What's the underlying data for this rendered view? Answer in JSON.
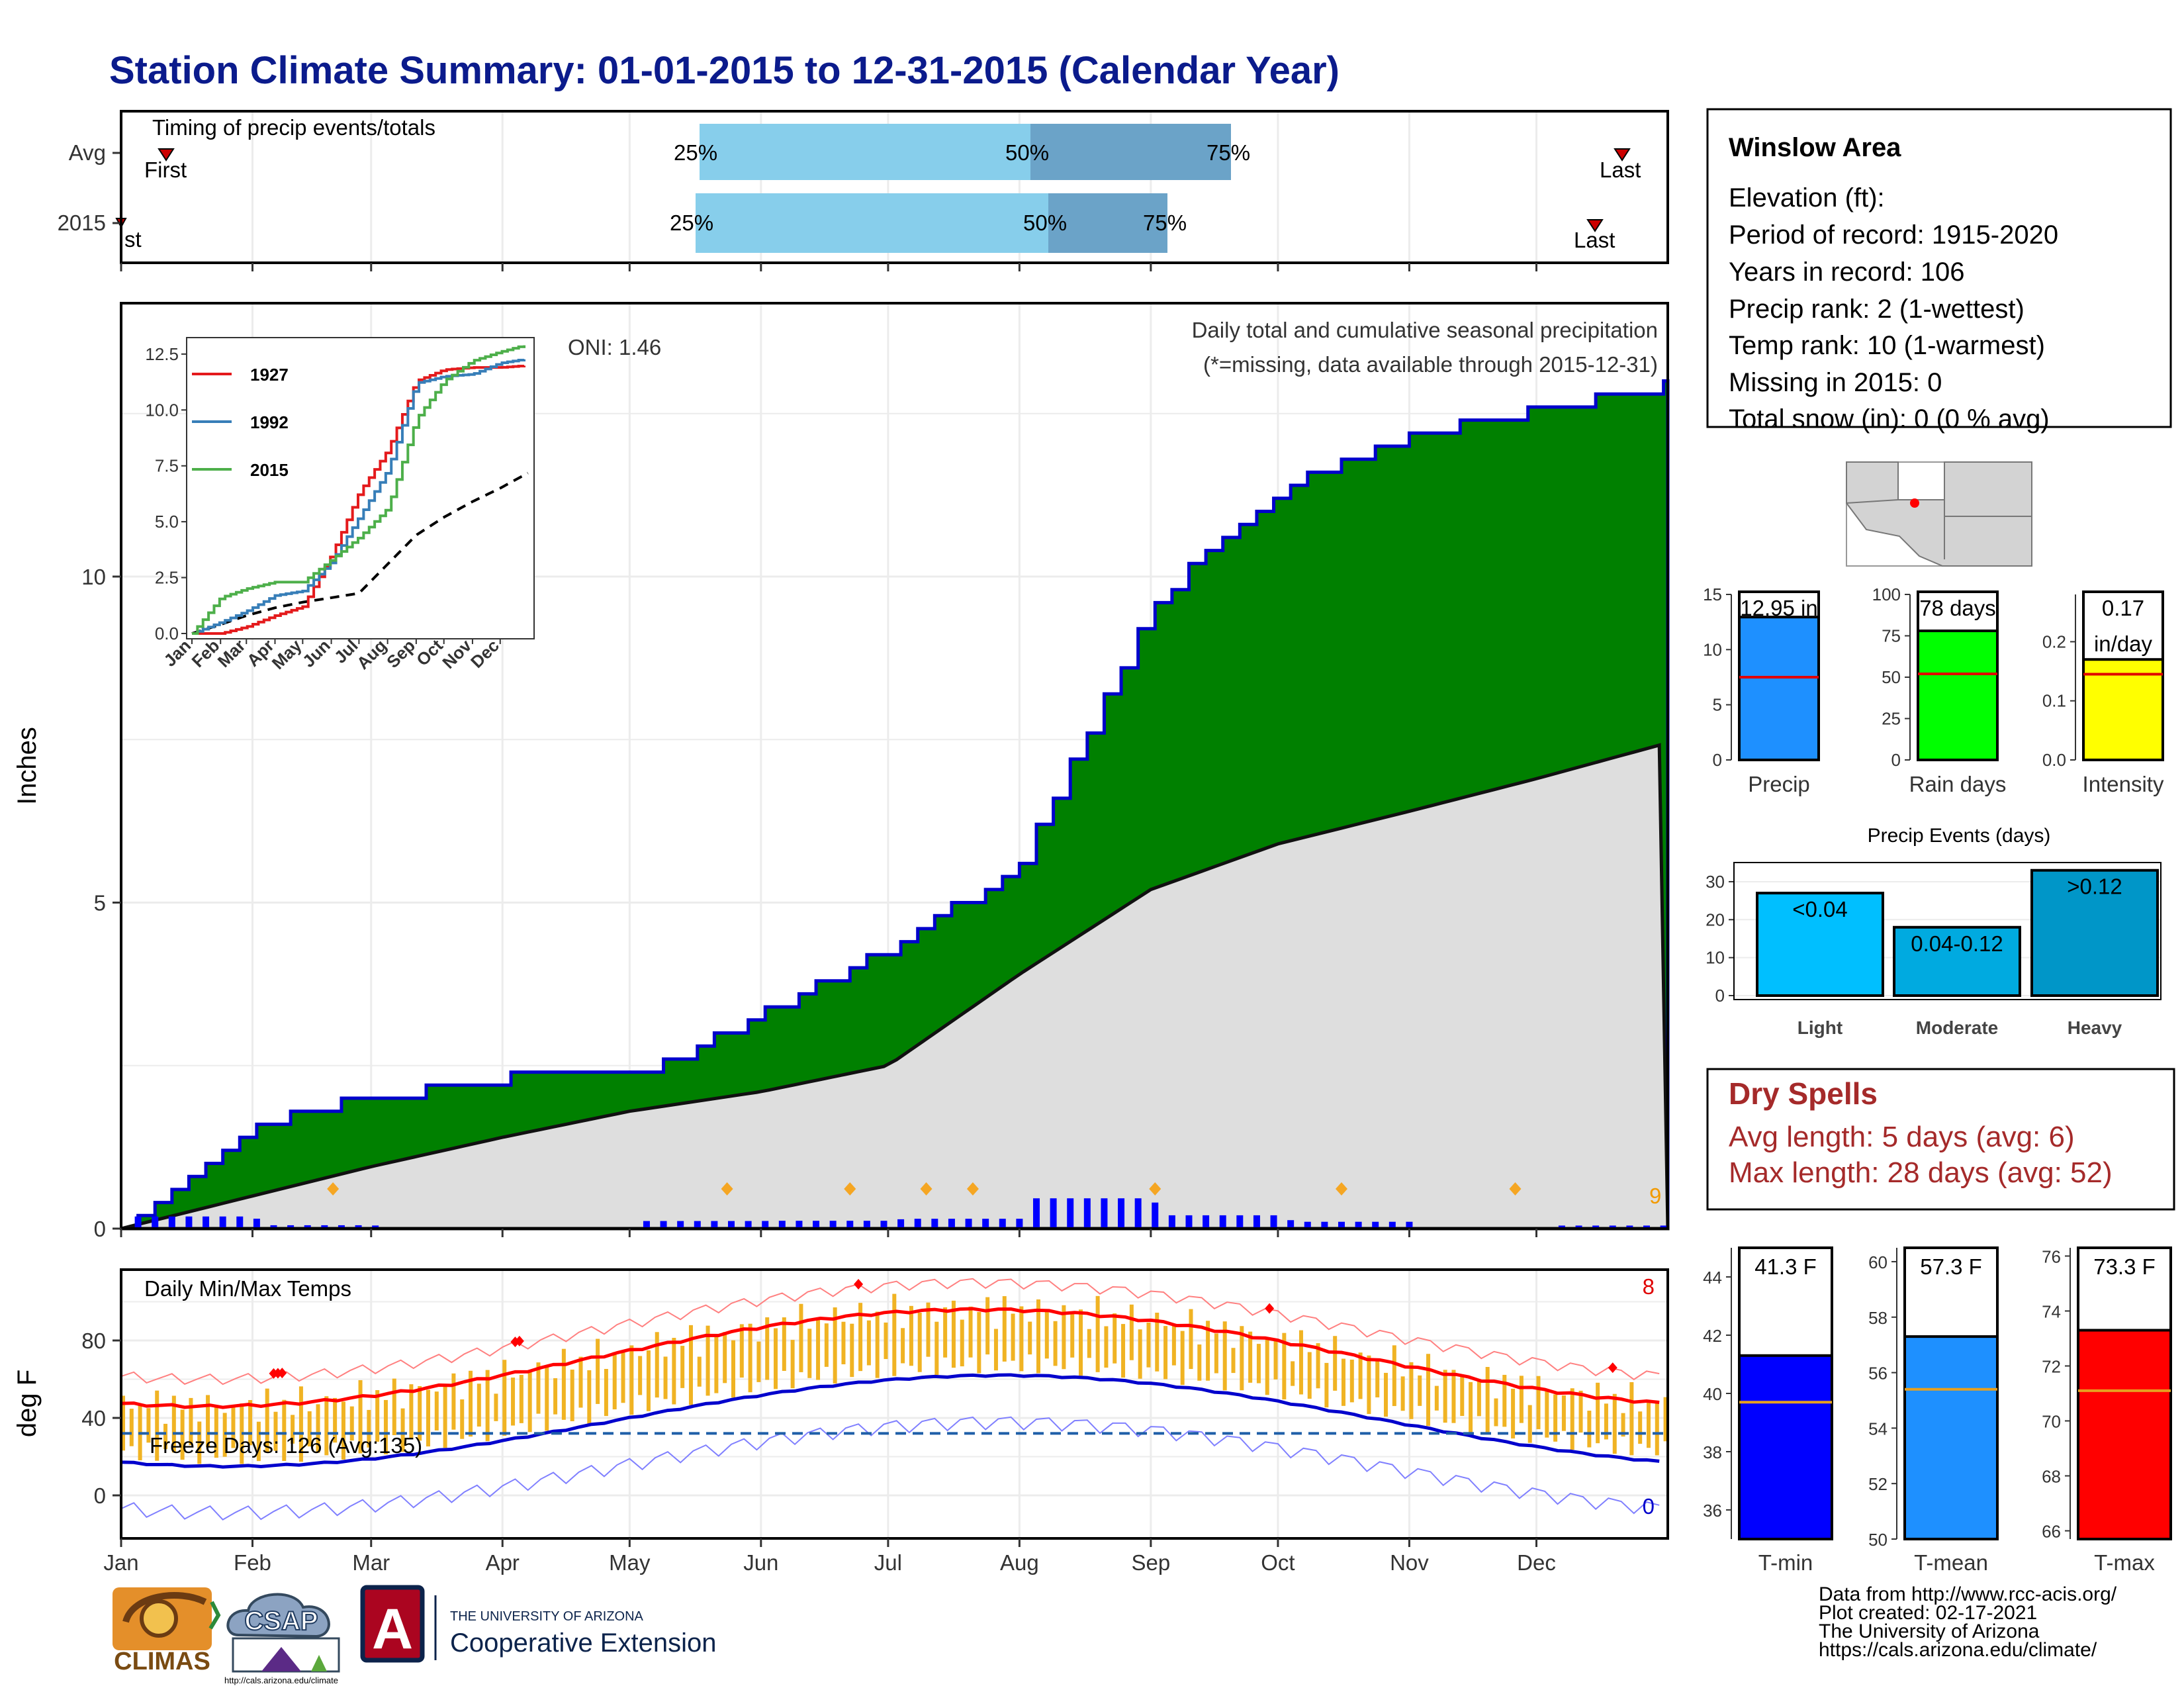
{
  "title": "Station Climate Summary: 01-01-2015 to 12-31-2015 (Calendar Year)",
  "months": [
    "Jan",
    "Feb",
    "Mar",
    "Apr",
    "May",
    "Jun",
    "Jul",
    "Aug",
    "Sep",
    "Oct",
    "Nov",
    "Dec"
  ],
  "timing_panel": {
    "title": "Timing of precip events/totals",
    "rows": [
      {
        "label": "Avg",
        "p25": "25%",
        "p50": "50%",
        "p75": "75%",
        "first": "First",
        "last": "Last"
      },
      {
        "label": "2015",
        "p25": "25%",
        "p50": "50%",
        "p75": "75%",
        "first": "First",
        "last": "Last"
      }
    ]
  },
  "precip_panel": {
    "ylabel": "Inches",
    "y_ticks": [
      "0",
      "5",
      "10"
    ],
    "oni": "ONI: 1.46",
    "heading": "Daily total and cumulative seasonal precipitation",
    "missing_note": "(*=missing, data available through 2015-12-31)",
    "count_label": "9",
    "inset": {
      "y_ticks": [
        "0.0",
        "2.5",
        "5.0",
        "7.5",
        "10.0",
        "12.5"
      ],
      "x_ticks": [
        "Jan",
        "Feb",
        "Mar",
        "Apr",
        "May",
        "Jun",
        "Jul",
        "Aug",
        "Sep",
        "Oct",
        "Nov",
        "Dec"
      ],
      "legend": [
        {
          "name": "1927",
          "color": "#e41a1c"
        },
        {
          "name": "1992",
          "color": "#377eb8"
        },
        {
          "name": "2015",
          "color": "#4daf4a"
        }
      ]
    }
  },
  "temp_panel": {
    "ylabel": "deg F",
    "title": "Daily Min/Max Temps",
    "y_ticks": [
      "0",
      "40",
      "80"
    ],
    "freeze_note": "Freeze Days: 126 (Avg:135)",
    "count_max": "8",
    "count_min": "0"
  },
  "station_info": {
    "name": "Winslow Area",
    "lines": [
      "Elevation (ft):",
      "Period of record: 1915-2020",
      "Years in record: 106",
      "Precip rank: 2 (1-wettest)",
      "Temp rank: 10 (1-warmest)",
      "Missing in 2015: 0",
      "Total snow (in): 0 (0 % avg)"
    ]
  },
  "summary_bars": [
    {
      "name": "Precip",
      "label": "12.95 in",
      "value": 12.95,
      "avg": 7.5,
      "ymax": 15,
      "ticks": [
        "0",
        "5",
        "10",
        "15"
      ],
      "color": "#1e90ff"
    },
    {
      "name": "Rain days",
      "label": "78 days",
      "value": 78,
      "avg": 52,
      "ymax": 100,
      "ticks": [
        "0",
        "25",
        "50",
        "75",
        "100"
      ],
      "color": "#00ff00"
    },
    {
      "name": "Intensity",
      "label": "0.17",
      "label2": "in/day",
      "value": 0.17,
      "avg": 0.145,
      "ymax": 0.28,
      "ticks": [
        "0.0",
        "0.1",
        "0.2"
      ],
      "color": "#ffff00"
    }
  ],
  "events": {
    "title": "Precip Events (days)",
    "y_ticks": [
      "0",
      "10",
      "20",
      "30"
    ],
    "bars": [
      {
        "category": "Light",
        "label": "<0.04",
        "value": 27,
        "color": "#00bfff"
      },
      {
        "category": "Moderate",
        "label": "0.04-0.12",
        "value": 18,
        "color": "#00aae0"
      },
      {
        "category": "Heavy",
        "label": ">0.12",
        "value": 33,
        "color": "#0096c8"
      }
    ]
  },
  "dry_spells": {
    "title": "Dry Spells",
    "avg_length": "Avg length: 5 days (avg: 6)",
    "max_length": "Max length: 28 days (avg: 52)"
  },
  "temp_bars": [
    {
      "name": "T-min",
      "label": "41.3 F",
      "value": 41.3,
      "avg": 39.7,
      "ymin": 35,
      "ymax": 45,
      "ticks": [
        "36",
        "38",
        "40",
        "42",
        "44"
      ],
      "color": "#0000ff"
    },
    {
      "name": "T-mean",
      "label": "57.3 F",
      "value": 57.3,
      "avg": 55.4,
      "ymin": 50,
      "ymax": 60.5,
      "ticks": [
        "50",
        "52",
        "54",
        "56",
        "58",
        "60"
      ],
      "color": "#1e90ff"
    },
    {
      "name": "T-max",
      "label": "73.3 F",
      "value": 73.3,
      "avg": 71.1,
      "ymin": 65.7,
      "ymax": 76.3,
      "ticks": [
        "66",
        "68",
        "70",
        "72",
        "74",
        "76"
      ],
      "color": "#ff0000"
    }
  ],
  "logos": {
    "climas": "CLIMAS",
    "csap": "CSAP",
    "csap_url": "http://cals.arizona.edu/climate",
    "ua_small": "THE UNIVERSITY OF ARIZONA",
    "ua_large": "Cooperative Extension",
    "ua_letter": "A"
  },
  "credits": [
    "Data from http://www.rcc-acis.org/",
    "Plot created: 02-17-2021",
    "The University of Arizona",
    "https://cals.arizona.edu/climate/"
  ],
  "chart_data": {
    "type": "area",
    "title": "Daily total and cumulative seasonal precipitation",
    "ylabel": "Inches",
    "ylim": [
      0,
      13
    ],
    "x": [
      "Jan",
      "Feb",
      "Mar",
      "Apr",
      "May",
      "Jun",
      "Jul",
      "Aug",
      "Sep",
      "Oct",
      "Nov",
      "Dec",
      "Jan"
    ],
    "series": [
      {
        "name": "2015",
        "values": [
          0.0,
          1.6,
          2.0,
          2.3,
          2.3,
          3.3,
          4.3,
          5.6,
          9.6,
          11.3,
          12.2,
          12.55,
          12.95
        ]
      },
      {
        "values": [
          0.0,
          0.5,
          0.95,
          1.4,
          1.8,
          2.1,
          2.5,
          3.9,
          5.2,
          5.9,
          6.4,
          6.9,
          7.45
        ]
      }
    ]
  }
}
